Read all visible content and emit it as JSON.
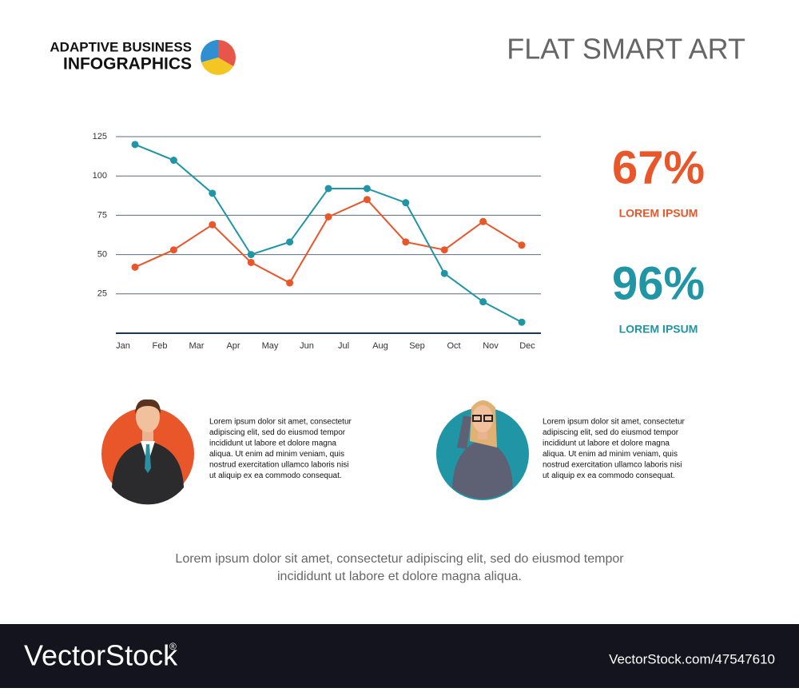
{
  "header": {
    "brand_line1": "ADAPTIVE BUSINESS",
    "brand_line2": "INFOGRAPHICS",
    "title": "FLAT SMART ART"
  },
  "chart_data": {
    "type": "line",
    "categories": [
      "Jan",
      "Feb",
      "Mar",
      "Apr",
      "May",
      "Jun",
      "Jul",
      "Aug",
      "Sep",
      "Oct",
      "Nov",
      "Dec"
    ],
    "series": [
      {
        "name": "Orange",
        "color": "#e8562a",
        "values": [
          42,
          53,
          69,
          45,
          32,
          74,
          85,
          58,
          53,
          71,
          56,
          null
        ]
      },
      {
        "name": "Teal",
        "color": "#1f95a5",
        "values": [
          120,
          110,
          89,
          50,
          58,
          92,
          92,
          83,
          38,
          20,
          7,
          null
        ]
      }
    ],
    "ylim": [
      0,
      125
    ],
    "yticks": [
      25,
      50,
      75,
      100,
      125
    ],
    "grid": true
  },
  "stats": [
    {
      "value": "67%",
      "label": "LOREM IPSUM",
      "color": "#e8562a"
    },
    {
      "value": "96%",
      "label": "LOREM IPSUM",
      "color": "#1f95a5"
    }
  ],
  "people": [
    {
      "text": [
        "Lorem ipsum dolor sit amet, consectetur",
        "adipiscing elit, sed do eiusmod tempor",
        "incididunt ut labore et dolore magna",
        "aliqua. Ut enim ad minim veniam, quis",
        "nostrud exercitation ullamco laboris nisi",
        "ut aliquip ex ea commodo consequat."
      ]
    },
    {
      "text": [
        "Lorem ipsum dolor sit amet, consectetur",
        "adipiscing elit, sed do eiusmod tempor",
        "incididunt ut labore et dolore magna",
        "aliqua. Ut enim ad minim veniam, quis",
        "nostrud exercitation ullamco laboris nisi",
        "ut aliquip ex ea commodo consequat."
      ]
    }
  ],
  "footer_text": [
    "Lorem ipsum dolor sit amet, consectetur adipiscing elit, sed do eiusmod tempor",
    "incididunt ut labore et dolore magna aliqua."
  ],
  "watermark": {
    "brand": "VectorStock",
    "reg": "®",
    "id": "VectorStock.com/47547610"
  }
}
